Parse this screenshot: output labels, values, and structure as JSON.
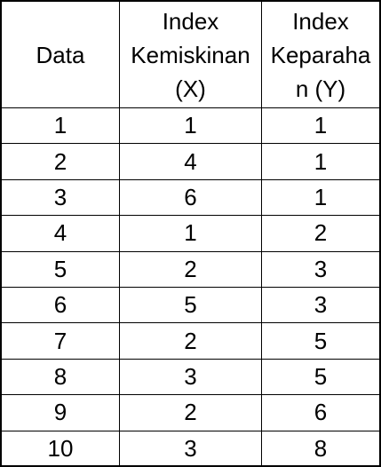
{
  "header": {
    "col1": [
      "Data"
    ],
    "col2": [
      "Index",
      "Kemiskinan",
      "(X)"
    ],
    "col3": [
      "Index",
      "Keparaha",
      "n (Y)"
    ]
  },
  "rows": [
    {
      "data": "1",
      "x": "1",
      "y": "1"
    },
    {
      "data": "2",
      "x": "4",
      "y": "1"
    },
    {
      "data": "3",
      "x": "6",
      "y": "1"
    },
    {
      "data": "4",
      "x": "1",
      "y": "2"
    },
    {
      "data": "5",
      "x": "2",
      "y": "3"
    },
    {
      "data": "6",
      "x": "5",
      "y": "3"
    },
    {
      "data": "7",
      "x": "2",
      "y": "5"
    },
    {
      "data": "8",
      "x": "3",
      "y": "5"
    },
    {
      "data": "9",
      "x": "2",
      "y": "6"
    },
    {
      "data": "10",
      "x": "3",
      "y": "8"
    }
  ]
}
